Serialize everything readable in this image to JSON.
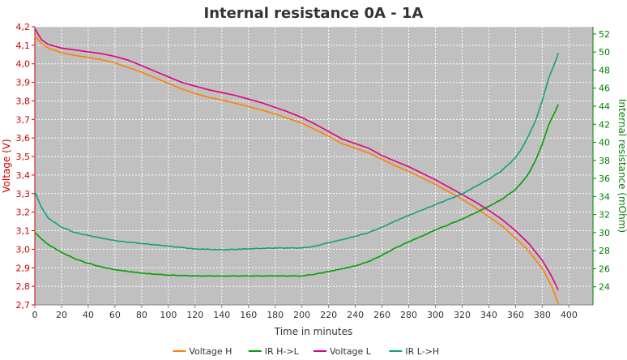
{
  "chart_data": {
    "type": "line",
    "title": "Internal resistance  0A - 1A",
    "xlabel": "Time in minutes",
    "ylabel_left": "Voltage (V)",
    "ylabel_right": "Internal resistance (mOhm)",
    "xlim": [
      0,
      418
    ],
    "ylim_left": [
      2.7,
      4.2
    ],
    "ylim_right": [
      22.0,
      52.8
    ],
    "x_ticks": [
      "0",
      "20",
      "40",
      "60",
      "80",
      "100",
      "120",
      "140",
      "160",
      "180",
      "200",
      "220",
      "240",
      "260",
      "280",
      "300",
      "320",
      "340",
      "360",
      "380",
      "400"
    ],
    "y_left_ticks": [
      "2,7",
      "2,8",
      "2,9",
      "3,0",
      "3,1",
      "3,2",
      "3,3",
      "3,4",
      "3,5",
      "3,6",
      "3,7",
      "3,8",
      "3,9",
      "4,0",
      "4,1",
      "4,2"
    ],
    "y_right_ticks": [
      "24",
      "26",
      "28",
      "30",
      "32",
      "34",
      "36",
      "38",
      "40",
      "42",
      "44",
      "46",
      "48",
      "50",
      "52"
    ],
    "grid": true,
    "legend_position": "bottom",
    "series": [
      {
        "name": "Voltage H",
        "axis": "left",
        "color": "#ff8000",
        "x": [
          0,
          5,
          10,
          20,
          30,
          40,
          50,
          60,
          70,
          80,
          90,
          100,
          110,
          120,
          130,
          140,
          150,
          160,
          170,
          180,
          190,
          200,
          210,
          220,
          230,
          240,
          250,
          260,
          270,
          280,
          290,
          300,
          310,
          320,
          330,
          340,
          350,
          360,
          370,
          380,
          385,
          388,
          390,
          392
        ],
        "y": [
          4.15,
          4.11,
          4.085,
          4.06,
          4.045,
          4.035,
          4.022,
          4.005,
          3.98,
          3.955,
          3.925,
          3.895,
          3.865,
          3.84,
          3.82,
          3.805,
          3.788,
          3.77,
          3.75,
          3.73,
          3.705,
          3.68,
          3.645,
          3.61,
          3.57,
          3.545,
          3.52,
          3.485,
          3.45,
          3.42,
          3.385,
          3.35,
          3.31,
          3.27,
          3.225,
          3.175,
          3.125,
          3.06,
          2.99,
          2.895,
          2.83,
          2.785,
          2.745,
          2.705
        ]
      },
      {
        "name": "IR H->L",
        "axis": "right",
        "color": "#00a000",
        "x": [
          0,
          5,
          10,
          20,
          30,
          40,
          50,
          60,
          80,
          100,
          120,
          140,
          160,
          180,
          200,
          210,
          220,
          230,
          240,
          250,
          260,
          270,
          280,
          290,
          300,
          310,
          320,
          330,
          340,
          350,
          360,
          365,
          370,
          375,
          380,
          385,
          390,
          392
        ],
        "y": [
          30.0,
          29.3,
          28.7,
          27.8,
          27.1,
          26.6,
          26.2,
          25.9,
          25.5,
          25.3,
          25.2,
          25.2,
          25.2,
          25.2,
          25.2,
          25.4,
          25.7,
          26.0,
          26.3,
          26.8,
          27.5,
          28.3,
          29.0,
          29.6,
          30.3,
          30.9,
          31.5,
          32.2,
          32.9,
          33.7,
          34.8,
          35.6,
          36.6,
          38.0,
          39.8,
          42.0,
          43.5,
          44.2
        ]
      },
      {
        "name": "Voltage L",
        "axis": "left",
        "color": "#e0007f",
        "x": [
          0,
          5,
          10,
          20,
          30,
          40,
          50,
          60,
          70,
          80,
          90,
          100,
          110,
          120,
          130,
          140,
          150,
          160,
          170,
          180,
          190,
          200,
          210,
          220,
          230,
          240,
          250,
          260,
          270,
          280,
          290,
          300,
          310,
          320,
          330,
          340,
          350,
          360,
          370,
          380,
          385,
          388,
          390,
          392
        ],
        "y": [
          4.19,
          4.13,
          4.105,
          4.085,
          4.075,
          4.065,
          4.055,
          4.04,
          4.02,
          3.99,
          3.96,
          3.93,
          3.9,
          3.88,
          3.86,
          3.845,
          3.83,
          3.81,
          3.79,
          3.765,
          3.74,
          3.71,
          3.675,
          3.635,
          3.595,
          3.57,
          3.545,
          3.505,
          3.475,
          3.445,
          3.41,
          3.375,
          3.335,
          3.295,
          3.255,
          3.21,
          3.16,
          3.1,
          3.03,
          2.94,
          2.88,
          2.84,
          2.81,
          2.78
        ]
      },
      {
        "name": "IR L->H",
        "axis": "right",
        "color": "#10a080",
        "x": [
          0,
          5,
          10,
          20,
          30,
          40,
          50,
          60,
          80,
          100,
          120,
          140,
          160,
          180,
          200,
          210,
          220,
          230,
          240,
          250,
          260,
          270,
          280,
          290,
          300,
          310,
          320,
          330,
          340,
          350,
          360,
          365,
          370,
          375,
          380,
          385,
          390,
          392
        ],
        "y": [
          34.5,
          32.8,
          31.6,
          30.6,
          30.0,
          29.7,
          29.4,
          29.1,
          28.8,
          28.5,
          28.2,
          28.1,
          28.2,
          28.3,
          28.3,
          28.5,
          28.9,
          29.2,
          29.6,
          30.0,
          30.6,
          31.3,
          31.9,
          32.5,
          33.1,
          33.7,
          34.3,
          35.1,
          35.9,
          36.9,
          38.3,
          39.4,
          40.8,
          42.4,
          44.6,
          47.2,
          49.0,
          49.9
        ]
      }
    ]
  }
}
